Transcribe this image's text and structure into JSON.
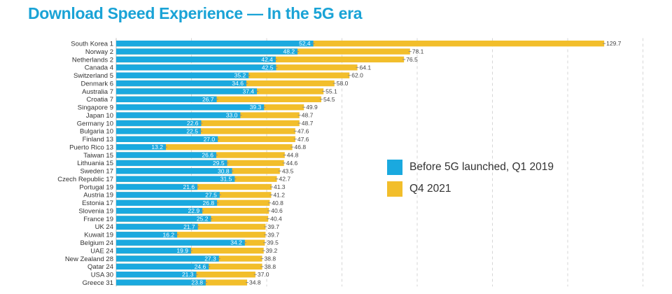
{
  "chart_data": {
    "type": "bar",
    "orientation": "horizontal",
    "title": "Download Speed Experience — In the 5G era",
    "xlabel": "",
    "ylabel": "",
    "xlim": [
      0,
      140
    ],
    "grid": true,
    "legend_position": "center-right",
    "categories": [
      "South Korea 1",
      "Norway 2",
      "Netherlands 2",
      "Canada 4",
      "Switzerland 5",
      "Denmark 6",
      "Australia 7",
      "Croatia 7",
      "Singapore 9",
      "Japan 10",
      "Germany 10",
      "Bulgaria 10",
      "Finland 13",
      "Puerto Rico 13",
      "Taiwan 15",
      "Lithuania 15",
      "Sweden 17",
      "Czech Republic 17",
      "Portugal 19",
      "Austria 19",
      "Estonia 17",
      "Slovenia 19",
      "France 19",
      "UK 24",
      "Kuwait 19",
      "Belgium 24",
      "UAE 24",
      "New Zealand 28",
      "Qatar 24",
      "USA 30",
      "Greece 31"
    ],
    "series": [
      {
        "name": "Before 5G launched, Q1 2019",
        "color": "#1aa9df",
        "values": [
          52.4,
          48.2,
          42.4,
          42.5,
          35.2,
          34.6,
          37.4,
          26.7,
          39.3,
          33.0,
          22.6,
          22.5,
          27.0,
          13.2,
          26.6,
          29.5,
          30.8,
          31.5,
          21.6,
          27.5,
          26.8,
          22.9,
          25.2,
          21.7,
          16.2,
          34.2,
          19.9,
          27.3,
          24.6,
          21.3,
          23.8
        ],
        "labels": [
          "52.4",
          "48.2",
          "42.4",
          "42.5",
          "35.2",
          "34.6",
          "37.4",
          "26.7",
          "39.3",
          "33.0",
          "22.6",
          "22.5",
          "27.0",
          "13.2",
          "26.6",
          "29.5",
          "30.8",
          "31.5",
          "21.6",
          "27.5",
          "26.8",
          "22.9",
          "25.2",
          "21.7",
          "16.2",
          "34.2",
          "19.9",
          "27.3",
          "24.6",
          "21.3",
          "23.8"
        ]
      },
      {
        "name": "Q4 2021",
        "color": "#f2be2b",
        "values": [
          129.7,
          78.1,
          76.5,
          64.1,
          62.0,
          58.0,
          55.1,
          54.5,
          49.9,
          48.7,
          48.7,
          47.6,
          47.6,
          46.8,
          44.8,
          44.6,
          43.5,
          42.7,
          41.3,
          41.2,
          40.8,
          40.6,
          40.4,
          39.7,
          39.7,
          39.5,
          39.2,
          38.8,
          38.8,
          37.0,
          34.8
        ],
        "labels": [
          "129.7",
          "78.1",
          "76.5",
          "64.1",
          "62.0",
          "58.0",
          "55.1",
          "54.5",
          "49.9",
          "48.7",
          "48.7",
          "47.6",
          "47.6",
          "46.8",
          "44.8",
          "44.6",
          "43.5",
          "42.7",
          "41.3",
          "41.2",
          "40.8",
          "40.6",
          "40.4",
          "39.7",
          "39.7",
          "39.5",
          "39.2",
          "38.8",
          "38.8",
          "37.0",
          "34.8"
        ]
      }
    ]
  }
}
